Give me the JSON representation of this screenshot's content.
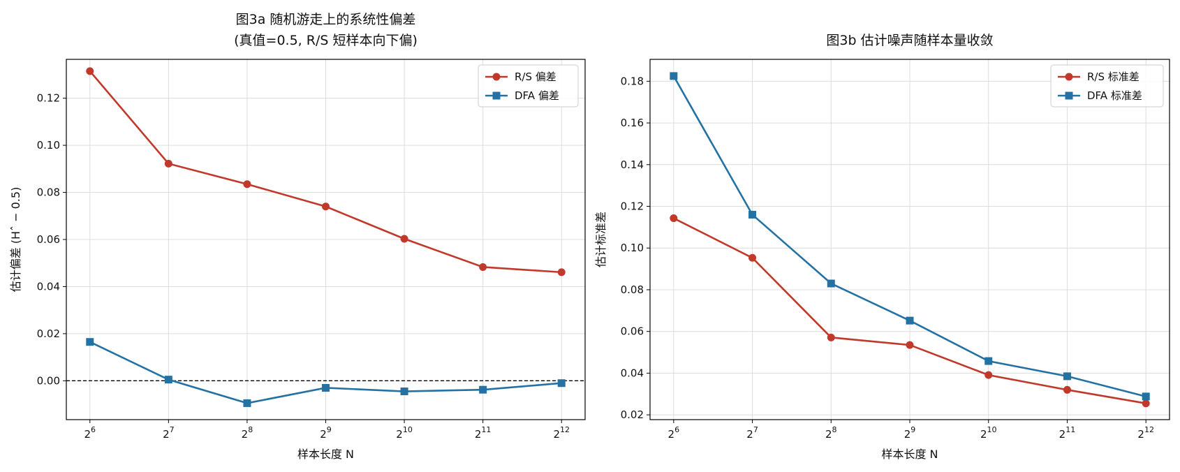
{
  "charts": [
    {
      "id": "a",
      "type": "line",
      "title": [
        "图3a  随机游走上的系统性偏差",
        "(真值=0.5, R/S 短样本向下偏)"
      ],
      "xlabel": "样本长度 N",
      "ylabel": "估计偏差 (Hˆ − 0.5)",
      "x_exponents": [
        6,
        7,
        8,
        9,
        10,
        11,
        12
      ],
      "x_base": "2",
      "ylim": [
        -0.0165,
        0.1365
      ],
      "yticks": [
        0.0,
        0.02,
        0.04,
        0.06,
        0.08,
        0.1,
        0.12
      ],
      "ytick_labels": [
        "0.00",
        "0.02",
        "0.04",
        "0.06",
        "0.08",
        "0.10",
        "0.12"
      ],
      "reference_line": 0.0,
      "grid": true,
      "legend_position": "top-right",
      "series": [
        {
          "name": "R/S 偏差",
          "color": "#c0392b",
          "marker": "circle",
          "values": [
            0.1315,
            0.0922,
            0.0835,
            0.074,
            0.0603,
            0.0483,
            0.0461
          ]
        },
        {
          "name": "DFA 偏差",
          "color": "#2471a3",
          "marker": "square",
          "values": [
            0.0165,
            0.0005,
            -0.0095,
            -0.003,
            -0.0045,
            -0.0038,
            -0.001
          ]
        }
      ]
    },
    {
      "id": "b",
      "type": "line",
      "title": [
        "图3b  估计噪声随样本量收敛"
      ],
      "xlabel": "样本长度 N",
      "ylabel": "估计标准差",
      "x_exponents": [
        6,
        7,
        8,
        9,
        10,
        11,
        12
      ],
      "x_base": "2",
      "ylim": [
        0.0177,
        0.1905
      ],
      "yticks": [
        0.02,
        0.04,
        0.06,
        0.08,
        0.1,
        0.12,
        0.14,
        0.16,
        0.18
      ],
      "ytick_labels": [
        "0.02",
        "0.04",
        "0.06",
        "0.08",
        "0.10",
        "0.12",
        "0.14",
        "0.16",
        "0.18"
      ],
      "grid": true,
      "legend_position": "top-right",
      "series": [
        {
          "name": "R/S 标准差",
          "color": "#c0392b",
          "marker": "circle",
          "values": [
            0.1143,
            0.0953,
            0.0571,
            0.0535,
            0.0391,
            0.032,
            0.0255
          ]
        },
        {
          "name": "DFA 标准差",
          "color": "#2471a3",
          "marker": "square",
          "values": [
            0.1825,
            0.116,
            0.083,
            0.0652,
            0.0458,
            0.0385,
            0.0288
          ]
        }
      ]
    }
  ]
}
